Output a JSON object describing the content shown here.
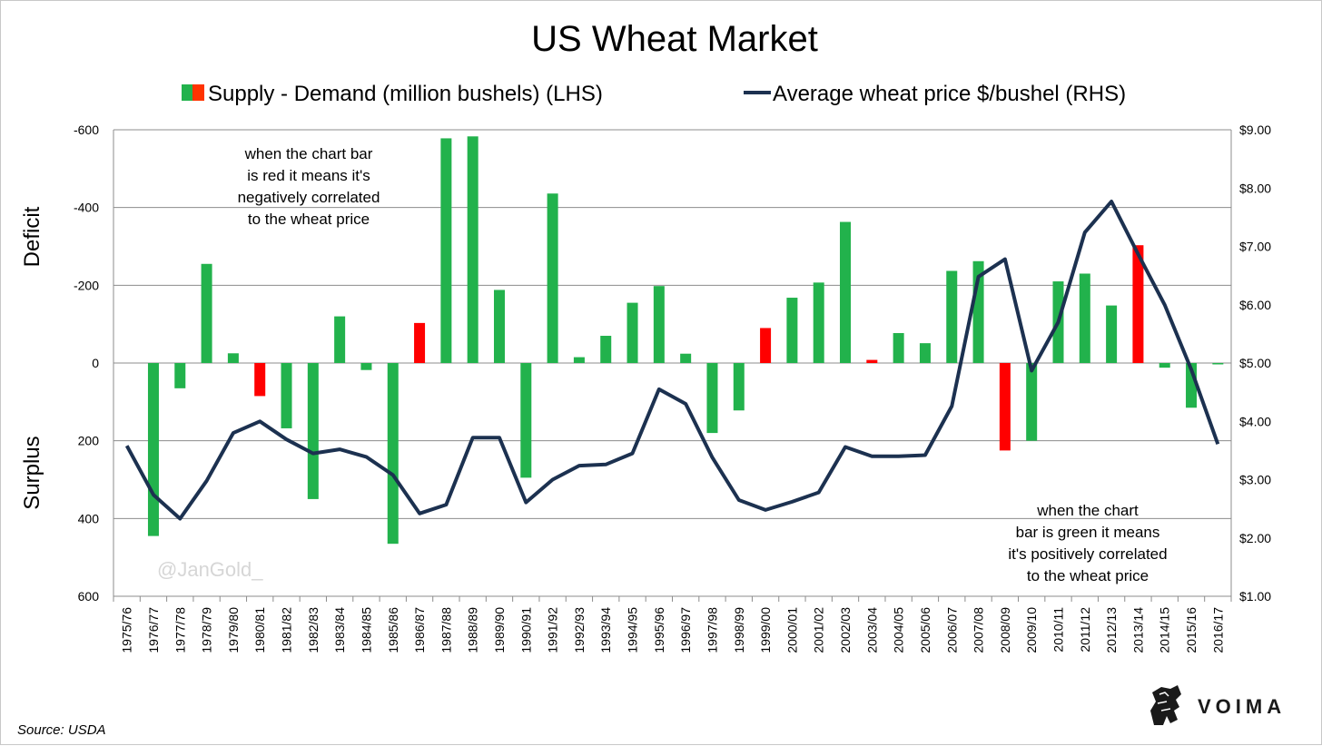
{
  "chart_data": {
    "type": "bar+line",
    "title": "US Wheat Market",
    "legend": {
      "bar_label": "Supply - Demand (million bushels) (LHS)",
      "line_label": "Average wheat price $/bushel (RHS)",
      "placement": "top"
    },
    "left_axis_labels": {
      "top": "Deficit",
      "bottom": "Surplus"
    },
    "left_ticks": [
      "-600",
      "-400",
      "-200",
      "0",
      "200",
      "400",
      "600"
    ],
    "right_ticks": [
      "$9.00",
      "$8.00",
      "$7.00",
      "$6.00",
      "$5.00",
      "$4.00",
      "$3.00",
      "$2.00",
      "$1.00"
    ],
    "ylim_left": [
      -600,
      600
    ],
    "ylim_right": [
      1,
      9
    ],
    "grid": true,
    "categories": [
      "1975/76",
      "1976/77",
      "1977/78",
      "1978/79",
      "1979/80",
      "1980/81",
      "1981/82",
      "1982/83",
      "1983/84",
      "1984/85",
      "1985/86",
      "1986/87",
      "1987/88",
      "1988/89",
      "1989/90",
      "1990/91",
      "1991/92",
      "1992/93",
      "1993/94",
      "1994/95",
      "1995/96",
      "1996/97",
      "1997/98",
      "1998/99",
      "1999/00",
      "2000/01",
      "2001/02",
      "2002/03",
      "2003/04",
      "2004/05",
      "2005/06",
      "2006/07",
      "2007/08",
      "2008/09",
      "2009/10",
      "2010/11",
      "2011/12",
      "2012/13",
      "2013/14",
      "2014/15",
      "2015/16",
      "2016/17"
    ],
    "series": [
      {
        "name": "Supply - Demand (million bushels) (LHS)",
        "type": "bar",
        "axis": "left",
        "values": [
          null,
          445,
          65,
          -255,
          -25,
          85,
          168,
          350,
          -120,
          18,
          465,
          -103,
          -578,
          -583,
          -188,
          295,
          -436,
          -15,
          -70,
          -155,
          -198,
          -24,
          180,
          122,
          -90,
          -168,
          -207,
          -363,
          -8,
          -77,
          -51,
          -237,
          -262,
          225,
          200,
          -210,
          -230,
          -148,
          -303,
          12,
          115,
          3
        ],
        "colors": [
          "green",
          "green",
          "green",
          "green",
          "green",
          "red",
          "green",
          "green",
          "green",
          "green",
          "green",
          "red",
          "green",
          "green",
          "green",
          "green",
          "green",
          "green",
          "green",
          "green",
          "green",
          "green",
          "green",
          "green",
          "red",
          "green",
          "green",
          "green",
          "red",
          "green",
          "green",
          "green",
          "green",
          "red",
          "green",
          "green",
          "green",
          "green",
          "red",
          "green",
          "green",
          "green"
        ]
      },
      {
        "name": "Average wheat price $/bushel (RHS)",
        "type": "line",
        "axis": "right",
        "values": [
          3.58,
          2.74,
          2.33,
          2.98,
          3.8,
          4.0,
          3.69,
          3.45,
          3.52,
          3.39,
          3.08,
          2.42,
          2.57,
          3.72,
          3.72,
          2.61,
          3.0,
          3.24,
          3.26,
          3.45,
          4.55,
          4.3,
          3.38,
          2.65,
          2.48,
          2.62,
          2.78,
          3.56,
          3.4,
          3.4,
          3.42,
          4.26,
          6.48,
          6.78,
          4.87,
          5.7,
          7.24,
          7.77,
          6.87,
          6.0,
          4.89,
          3.61
        ]
      }
    ],
    "annotations": [
      {
        "lines": [
          "when the chart bar",
          "is red it means it's",
          "negatively correlated",
          "to the wheat price"
        ]
      },
      {
        "lines": [
          "when the chart",
          "bar is green it means",
          "it's positively correlated",
          "to the wheat price"
        ]
      }
    ],
    "colors": {
      "bar_green": "#22b24c",
      "bar_red": "#ff0000",
      "line": "#1c3150",
      "grid": "#8c8c8c"
    }
  },
  "watermark": "@JanGold_",
  "source": "Source: USDA",
  "brand": {
    "name": "VOIMA",
    "icon": "lion-logo-icon"
  }
}
